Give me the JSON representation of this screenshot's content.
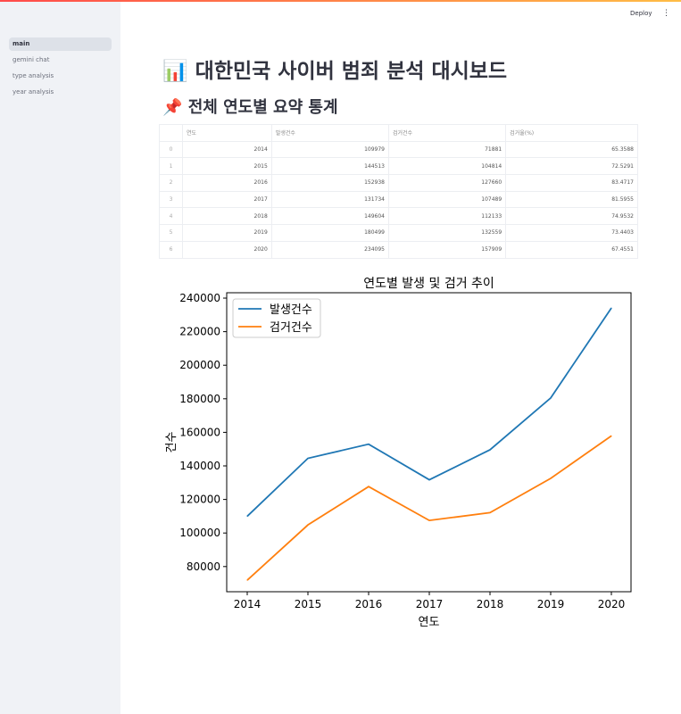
{
  "header": {
    "deploy_label": "Deploy",
    "menu_icon": "kebab-menu-icon"
  },
  "sidebar": {
    "items": [
      {
        "label": "main",
        "active": true
      },
      {
        "label": "gemini chat"
      },
      {
        "label": "type analysis"
      },
      {
        "label": "year analysis"
      }
    ]
  },
  "main": {
    "title_icon": "📊",
    "title": "대한민국 사이버 범죄 분석 대시보드",
    "subtitle_icon": "📌",
    "subtitle": "전체 연도별 요약 통계"
  },
  "table": {
    "columns": [
      "",
      "연도",
      "발생건수",
      "검거건수",
      "검거율(%)"
    ],
    "rows": [
      [
        "0",
        "2014",
        "109979",
        "71881",
        "65.3588"
      ],
      [
        "1",
        "2015",
        "144513",
        "104814",
        "72.5291"
      ],
      [
        "2",
        "2016",
        "152938",
        "127660",
        "83.4717"
      ],
      [
        "3",
        "2017",
        "131734",
        "107489",
        "81.5955"
      ],
      [
        "4",
        "2018",
        "149604",
        "112133",
        "74.9532"
      ],
      [
        "5",
        "2019",
        "180499",
        "132559",
        "73.4403"
      ],
      [
        "6",
        "2020",
        "234095",
        "157909",
        "67.4551"
      ]
    ]
  },
  "chart_data": {
    "type": "line",
    "title": "연도별 발생 및 검거 추이",
    "xlabel": "연도",
    "ylabel": "건수",
    "x": [
      2014,
      2015,
      2016,
      2017,
      2018,
      2019,
      2020
    ],
    "series": [
      {
        "name": "발생건수",
        "color": "#1f77b4",
        "values": [
          109979,
          144513,
          152938,
          131734,
          149604,
          180499,
          234095
        ]
      },
      {
        "name": "검거건수",
        "color": "#ff7f0e",
        "values": [
          71881,
          104814,
          127660,
          107489,
          112133,
          132559,
          157909
        ]
      }
    ],
    "yticks": [
      "80000",
      "100000",
      "120000",
      "140000",
      "160000",
      "180000",
      "200000",
      "220000",
      "240000"
    ],
    "xticks": [
      "2014",
      "2015",
      "2016",
      "2017",
      "2018",
      "2019",
      "2020"
    ],
    "ylim": [
      65000,
      243200
    ],
    "legend": "top-left",
    "grid": false
  }
}
